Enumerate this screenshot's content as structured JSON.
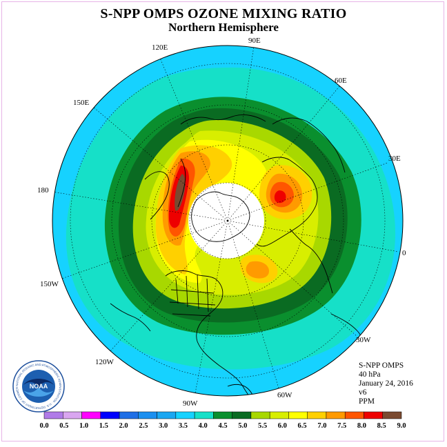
{
  "header": {
    "title": "S-NPP OMPS OZONE MIXING RATIO",
    "subtitle": "Northern Hemisphere"
  },
  "map": {
    "projection": "north polar stereographic",
    "longitude_labels": [
      "90E",
      "60E",
      "30E",
      "0",
      "30W",
      "60W",
      "90W",
      "120W",
      "150W",
      "180",
      "150E",
      "120E"
    ]
  },
  "info": {
    "instrument": "S-NPP OMPS",
    "level": "40 hPa",
    "date": "January 24, 2016",
    "version": "v6",
    "units": "PPM"
  },
  "colorbar": {
    "tick_labels": [
      "0.0",
      "0.5",
      "1.0",
      "1.5",
      "2.0",
      "2.5",
      "3.0",
      "3.5",
      "4.0",
      "4.5",
      "5.0",
      "5.5",
      "6.0",
      "6.5",
      "7.0",
      "7.5",
      "8.0",
      "8.5",
      "9.0"
    ],
    "colors": [
      "#b07be8",
      "#d9a6f0",
      "#ff00ff",
      "#0000ff",
      "#1f6fe6",
      "#1b8ff0",
      "#1aa7f2",
      "#16d2ff",
      "#16e0c8",
      "#0a8f2e",
      "#0a6b22",
      "#a8d800",
      "#d8ee00",
      "#ffff00",
      "#ffd000",
      "#ff9a00",
      "#ff5500",
      "#ee0000",
      "#7a4a30"
    ]
  },
  "colors": {
    "polar_night": "#ffffff",
    "map_border": "#000000",
    "frame": "#e6b3e6"
  },
  "logo": {
    "text": "NOAA",
    "ring_text": "NATIONAL OCEANIC AND ATMOSPHERIC ADMINISTRATION · U.S. DEPARTMENT OF COMMERCE"
  }
}
